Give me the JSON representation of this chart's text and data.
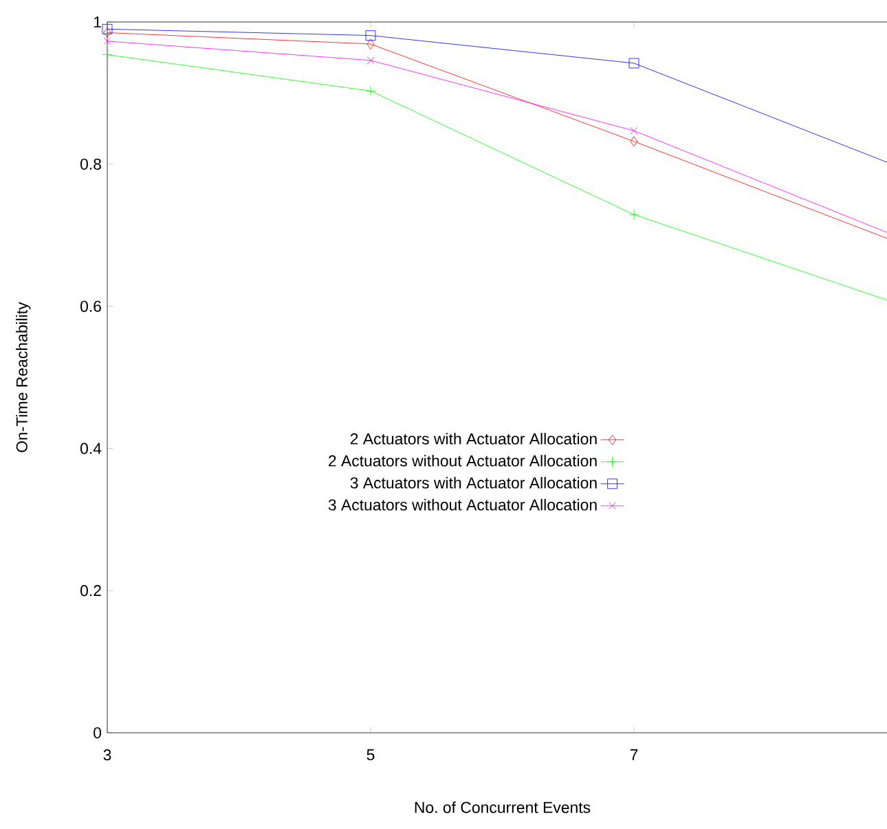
{
  "chart_data": {
    "type": "line",
    "xlabel": "No. of Concurrent Events",
    "ylabel": "On-Time Reachability",
    "x": [
      3,
      5,
      7,
      9
    ],
    "series": [
      {
        "name": "2 Actuators with Actuator Allocation",
        "color": "#ff0000",
        "marker": "diamond",
        "values": [
          0.985,
          0.969,
          0.832,
          0.69
        ]
      },
      {
        "name": "2 Actuators without Actuator Allocation",
        "color": "#00ff00",
        "marker": "plus",
        "values": [
          0.954,
          0.903,
          0.729,
          0.604
        ]
      },
      {
        "name": "3 Actuators with Actuator Allocation",
        "color": "#0000ff",
        "marker": "square",
        "values": [
          0.99,
          0.981,
          0.942,
          0.797
        ]
      },
      {
        "name": "3 Actuators without Actuator Allocation",
        "color": "#ff00ff",
        "marker": "cross",
        "values": [
          0.973,
          0.946,
          0.847,
          0.698
        ]
      }
    ],
    "xlim": [
      3,
      9
    ],
    "xticks": [
      3,
      5,
      7
    ],
    "ylim": [
      0,
      1
    ],
    "yticks": [
      0,
      0.2,
      0.4,
      0.6,
      0.8,
      1
    ],
    "grid": false,
    "legend": "left",
    "line_style": "solid"
  }
}
